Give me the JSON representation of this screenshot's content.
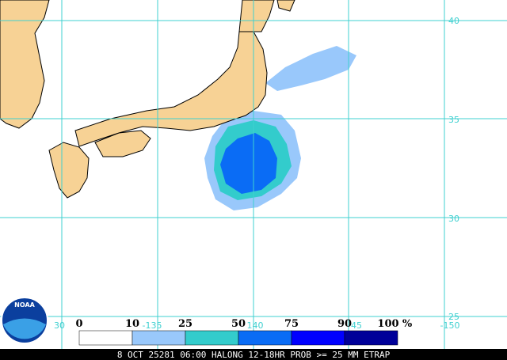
{
  "map": {
    "lat_labels": [
      "40",
      "35",
      "30",
      "25"
    ],
    "lon_labels": [
      "30",
      "-135",
      "140",
      "45",
      "-150"
    ],
    "legend": {
      "labels": [
        "0",
        "10",
        "25",
        "50",
        "75",
        "90",
        "100"
      ],
      "colors": [
        "#ffffff",
        "#99c8fb",
        "#33cccc",
        "#0a6cf5",
        "#0000ff",
        "#000099"
      ],
      "unit": "%"
    },
    "logo": "NOAA",
    "footer": "8 OCT 25281 06:00 HALONG 12-18HR PROB >= 25 MM ETRAP"
  }
}
